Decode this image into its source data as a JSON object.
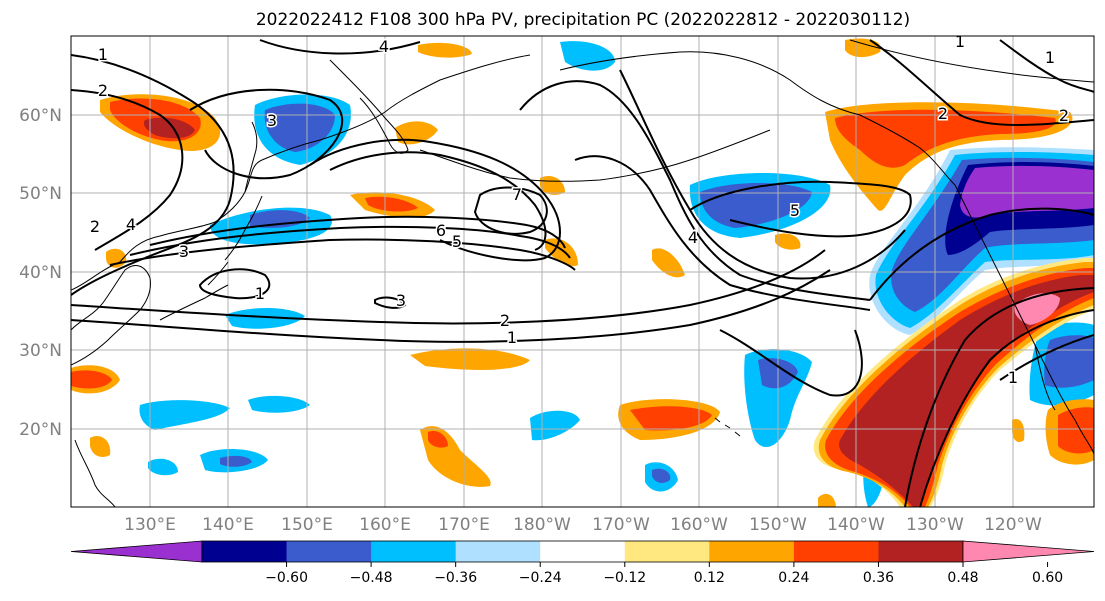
{
  "title": "2022022412 F108 300 hPa PV, precipitation PC (2022022812 - 2022030112)",
  "lat_labels": [
    "60°N",
    "50°N",
    "40°N",
    "30°N",
    "20°N"
  ],
  "lon_labels": [
    "130°E",
    "140°E",
    "150°E",
    "160°E",
    "170°E",
    "180°W",
    "170°W",
    "160°W",
    "150°W",
    "140°W",
    "130°W",
    "120°W"
  ],
  "colorbar": {
    "colors": [
      "#9b30d0",
      "#000090",
      "#3a5ccc",
      "#00bfff",
      "#b0e0ff",
      "#ffffff",
      "#ffe880",
      "#ffa500",
      "#ff4000",
      "#b22222",
      "#ff88b0"
    ],
    "tick_labels": [
      "−0.60",
      "−0.48",
      "−0.36",
      "−0.24",
      "−0.12",
      "0.12",
      "0.24",
      "0.36",
      "0.48",
      "0.60"
    ]
  },
  "contour_labels": [
    "1",
    "2",
    "4",
    "3",
    "2",
    "4",
    "3",
    "1",
    "3",
    "6",
    "5",
    "7",
    "2",
    "1",
    "4",
    "5",
    "2",
    "1",
    "1",
    "2",
    "1"
  ],
  "colors": {
    "coast": "#000000",
    "grid": "#b0b0b0",
    "contour": "#000000"
  }
}
